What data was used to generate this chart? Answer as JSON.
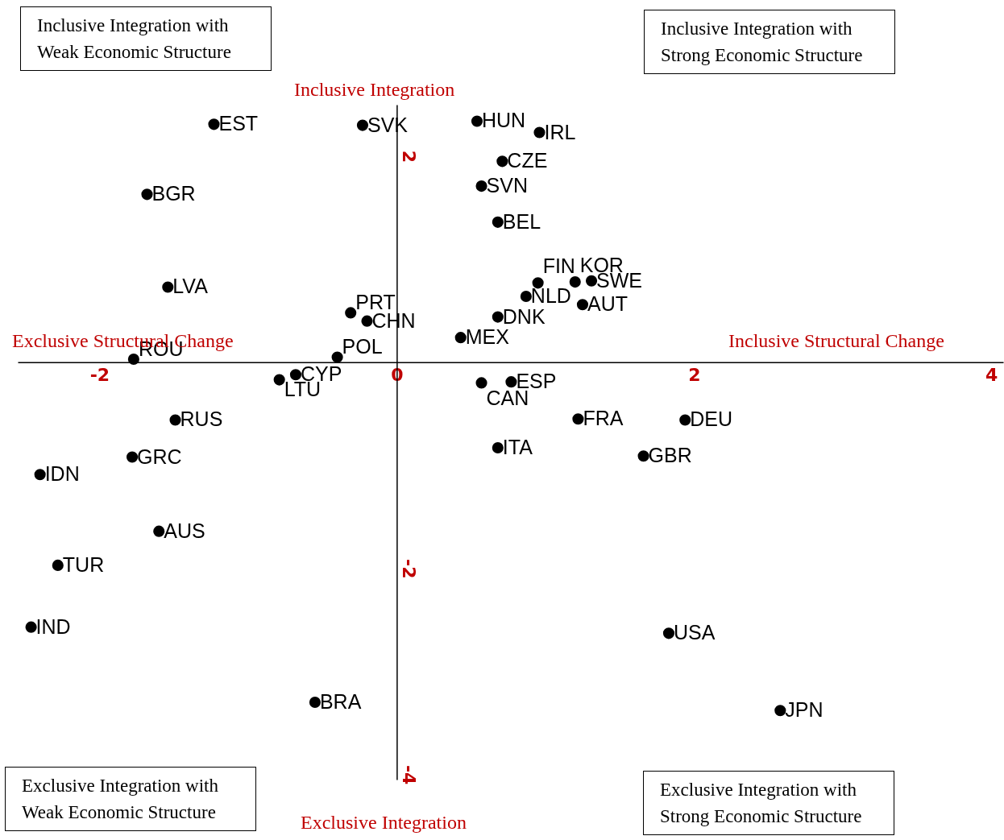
{
  "chart_data": {
    "type": "scatter",
    "marker": "circle",
    "grid": false,
    "xlim": [
      -2.55,
      4.08
    ],
    "ylim": [
      -4.05,
      2.5
    ],
    "xticks": [
      -2,
      0,
      2,
      4
    ],
    "yticks": [
      -4,
      -2,
      2
    ],
    "annotations": [
      "Inclusive Integration with Weak Economic Structure",
      "Inclusive Integration with Strong Economic Structure",
      "Exclusive Integration with Weak Economic Structure",
      "Exclusive Integration with Strong Economic Structure",
      "Inclusive Integration",
      "Exclusive Integration",
      "Exclusive Structural Change",
      "Inclusive Structural Change"
    ],
    "series": [
      {
        "color": "#000000",
        "x": [
          -1.23,
          -0.23,
          0.54,
          0.96,
          0.71,
          0.57,
          -1.68,
          0.68,
          -1.54,
          0.95,
          1.2,
          1.31,
          0.87,
          1.25,
          -0.31,
          -0.2,
          0.68,
          0.43,
          -1.77,
          -0.4,
          -0.68,
          -0.79,
          0.57,
          0.77,
          -1.49,
          1.22,
          1.94,
          0.68,
          -1.78,
          1.66,
          -2.4,
          -1.6,
          -2.28,
          -2.46,
          1.83,
          -0.55,
          2.58
        ],
        "values": [
          2.31,
          2.3,
          2.34,
          2.23,
          1.95,
          1.71,
          1.63,
          1.36,
          0.73,
          0.77,
          0.78,
          0.79,
          0.64,
          0.56,
          0.48,
          0.4,
          0.44,
          0.24,
          0.03,
          0.05,
          -0.12,
          -0.17,
          -0.2,
          -0.19,
          -0.56,
          -0.55,
          -0.56,
          -0.83,
          -0.92,
          -0.91,
          -1.09,
          -1.64,
          -1.97,
          -2.57,
          -2.63,
          -3.3,
          -3.38
        ],
        "value_labels": [
          "EST",
          "SVK",
          "HUN",
          "IRL",
          "CZE",
          "SVN",
          "BGR",
          "BEL",
          "LVA",
          "FIN",
          "KOR",
          "SWE",
          "NLD",
          "AUT",
          "PRT",
          "CHN",
          "DNK",
          "MEX",
          "ROU",
          "POL",
          "CYP",
          "LTU",
          "CAN",
          "ESP",
          "RUS",
          "FRA",
          "DEU",
          "ITA",
          "GRC",
          "GBR",
          "IDN",
          "AUS",
          "TUR",
          "IND",
          "USA",
          "BRA",
          "JPN"
        ]
      }
    ]
  }
}
